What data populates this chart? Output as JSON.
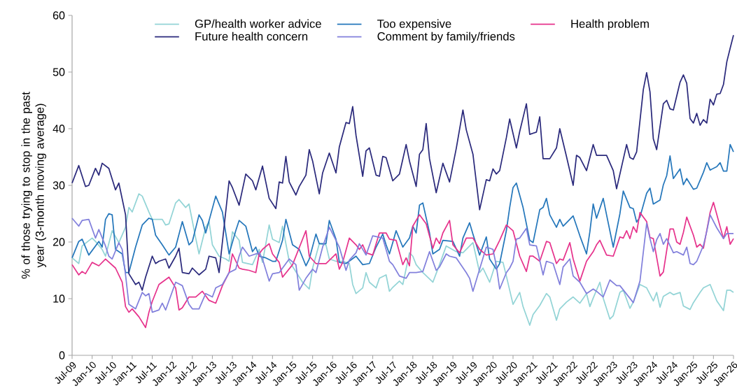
{
  "chart_data": {
    "type": "line",
    "ylabel": "% of those trying to stop in the past year (3-month moving average)",
    "xlim": [
      "2009-07",
      "2026-01"
    ],
    "xticks": [
      {
        "value": "2009-07",
        "label": "Jul-09"
      },
      {
        "value": "2010-01",
        "label": "Jan-10"
      },
      {
        "value": "2010-07",
        "label": "Jul-10"
      },
      {
        "value": "2011-01",
        "label": "Jan-11"
      },
      {
        "value": "2011-07",
        "label": "Jul-11"
      },
      {
        "value": "2012-01",
        "label": "Jan-12"
      },
      {
        "value": "2012-07",
        "label": "Jul-12"
      },
      {
        "value": "2013-01",
        "label": "Jan-13"
      },
      {
        "value": "2013-07",
        "label": "Jul-13"
      },
      {
        "value": "2014-01",
        "label": "Jan-14"
      },
      {
        "value": "2014-07",
        "label": "Jul-14"
      },
      {
        "value": "2015-01",
        "label": "Jan-15"
      },
      {
        "value": "2015-07",
        "label": "Jul-15"
      },
      {
        "value": "2016-01",
        "label": "Jan-16"
      },
      {
        "value": "2016-07",
        "label": "Jul-16"
      },
      {
        "value": "2017-01",
        "label": "Jan-17"
      },
      {
        "value": "2017-07",
        "label": "Jul-17"
      },
      {
        "value": "2018-01",
        "label": "Jan-18"
      },
      {
        "value": "2018-07",
        "label": "Jul-18"
      },
      {
        "value": "2019-01",
        "label": "Jan-19"
      },
      {
        "value": "2019-07",
        "label": "Jul-19"
      },
      {
        "value": "2020-01",
        "label": "Jan-20"
      },
      {
        "value": "2020-07",
        "label": "Jul-20"
      },
      {
        "value": "2021-01",
        "label": "Jan-21"
      },
      {
        "value": "2021-07",
        "label": "Jul-21"
      },
      {
        "value": "2022-01",
        "label": "Jan-22"
      },
      {
        "value": "2022-07",
        "label": "Jul-22"
      },
      {
        "value": "2023-01",
        "label": "Jan-23"
      },
      {
        "value": "2023-07",
        "label": "Jul-23"
      },
      {
        "value": "2024-01",
        "label": "Jan-24"
      },
      {
        "value": "2024-07",
        "label": "Jul-24"
      },
      {
        "value": "2025-01",
        "label": "Jan-25"
      },
      {
        "value": "2025-07",
        "label": "Jul-25"
      },
      {
        "value": "2026-01",
        "label": "Jan-26"
      }
    ],
    "ylim": [
      0,
      60
    ],
    "yticks": [
      0,
      10,
      20,
      30,
      40,
      50,
      60
    ],
    "legend": "top",
    "series": [
      {
        "name": "GP/health worker advice",
        "color": "#93d4d6",
        "x": [
          "2009-07",
          "2009-09",
          "2009-10",
          "2010-01",
          "2010-02",
          "2010-04",
          "2010-05",
          "2010-07",
          "2010-09",
          "2010-11",
          "2010-12",
          "2011-01",
          "2011-03",
          "2011-04",
          "2011-06",
          "2011-07",
          "2011-10",
          "2011-11",
          "2011-12",
          "2012-02",
          "2012-03",
          "2012-05",
          "2012-06",
          "2012-08",
          "2012-09",
          "2012-11",
          "2012-12",
          "2013-01",
          "2013-03",
          "2013-05",
          "2013-06",
          "2013-07",
          "2013-09",
          "2013-10",
          "2014-01",
          "2014-03",
          "2014-04",
          "2014-06",
          "2014-07",
          "2014-09",
          "2014-10",
          "2014-12",
          "2015-04",
          "2015-06",
          "2015-07",
          "2015-09",
          "2015-11",
          "2015-12",
          "2016-02",
          "2016-04",
          "2016-06",
          "2016-07",
          "2016-08",
          "2016-10",
          "2016-11",
          "2016-12",
          "2017-02",
          "2017-03",
          "2017-05",
          "2017-06",
          "2017-07",
          "2017-09",
          "2017-10",
          "2017-12",
          "2018-01",
          "2018-02",
          "2018-04",
          "2018-07",
          "2018-09",
          "2018-11",
          "2019-02",
          "2019-04",
          "2019-07",
          "2019-09",
          "2019-10",
          "2019-12",
          "2020-02",
          "2020-04",
          "2020-05",
          "2020-06",
          "2020-07",
          "2020-09",
          "2020-10",
          "2020-12",
          "2021-01",
          "2021-03",
          "2021-05",
          "2021-06",
          "2021-08",
          "2021-09",
          "2021-11",
          "2022-01",
          "2022-03",
          "2022-05",
          "2022-06",
          "2022-07",
          "2022-09",
          "2022-10",
          "2022-12",
          "2023-01",
          "2023-03",
          "2023-04",
          "2023-06",
          "2023-07",
          "2023-09",
          "2023-11",
          "2024-01",
          "2024-02",
          "2024-03",
          "2024-04",
          "2024-06",
          "2024-07",
          "2024-09",
          "2024-10",
          "2024-12",
          "2025-01",
          "2025-03",
          "2025-04",
          "2025-06",
          "2025-08",
          "2025-10",
          "2025-11",
          "2025-12",
          "2026-01"
        ],
        "values": [
          17.2,
          16.2,
          19.3,
          20.7,
          20.1,
          18.7,
          17.5,
          22.0,
          19.9,
          22.6,
          26.1,
          25.3,
          28.5,
          28.1,
          25.3,
          24.0,
          24.0,
          23.0,
          23.2,
          26.9,
          27.5,
          26.1,
          26.7,
          20.7,
          17.9,
          22.6,
          23.6,
          19.5,
          17.5,
          17.0,
          16.6,
          21.8,
          20.3,
          16.4,
          16.0,
          18.7,
          16.4,
          23.0,
          20.5,
          19.9,
          22.8,
          16.6,
          12.9,
          11.7,
          15.4,
          19.7,
          19.5,
          17.0,
          16.6,
          16.6,
          16.2,
          12.5,
          10.9,
          11.9,
          14.6,
          12.9,
          11.9,
          13.6,
          14.2,
          11.3,
          12.0,
          13.1,
          12.5,
          18.1,
          17.5,
          16.0,
          14.6,
          12.9,
          16.0,
          19.3,
          18.3,
          18.1,
          19.9,
          14.6,
          15.4,
          12.9,
          16.6,
          16.4,
          14.0,
          11.5,
          9.0,
          11.1,
          8.6,
          5.3,
          7.2,
          8.8,
          10.9,
          10.3,
          6.2,
          8.2,
          9.4,
          10.3,
          9.2,
          10.9,
          8.6,
          10.1,
          12.9,
          10.1,
          6.4,
          7.0,
          11.1,
          11.5,
          8.3,
          9.4,
          12.5,
          11.9,
          9.6,
          11.1,
          8.5,
          10.4,
          11.1,
          10.7,
          11.1,
          8.7,
          8.1,
          9.3,
          11.1,
          11.9,
          12.5,
          9.6,
          7.9,
          11.5,
          11.5,
          11.1
        ]
      },
      {
        "name": "Too expensive",
        "color": "#2577bb",
        "x": [
          "2009-07",
          "2009-09",
          "2009-10",
          "2009-12",
          "2010-03",
          "2010-04",
          "2010-05",
          "2010-06",
          "2010-07",
          "2010-08",
          "2010-10",
          "2010-11",
          "2010-12",
          "2011-02",
          "2011-04",
          "2011-06",
          "2011-07",
          "2011-08",
          "2011-10",
          "2011-12",
          "2012-02",
          "2012-04",
          "2012-06",
          "2012-07",
          "2012-09",
          "2012-10",
          "2012-11",
          "2013-02",
          "2013-04",
          "2013-06",
          "2013-08",
          "2013-09",
          "2013-11",
          "2014-01",
          "2014-02",
          "2014-03",
          "2014-05",
          "2014-07",
          "2014-08",
          "2014-10",
          "2014-11",
          "2015-01",
          "2015-03",
          "2015-05",
          "2015-06",
          "2015-08",
          "2015-09",
          "2015-11",
          "2015-12",
          "2016-02",
          "2016-03",
          "2016-05",
          "2016-08",
          "2016-10",
          "2016-12",
          "2017-02",
          "2017-04",
          "2017-05",
          "2017-06",
          "2017-07",
          "2017-08",
          "2017-10",
          "2017-12",
          "2018-01",
          "2018-02",
          "2018-03",
          "2018-04",
          "2018-06",
          "2018-07",
          "2018-09",
          "2018-10",
          "2019-01",
          "2019-03",
          "2019-04",
          "2019-06",
          "2019-07",
          "2019-09",
          "2019-11",
          "2019-12",
          "2020-02",
          "2020-03",
          "2020-05",
          "2020-06",
          "2020-07",
          "2020-08",
          "2020-10",
          "2020-12",
          "2021-01",
          "2021-03",
          "2021-04",
          "2021-05",
          "2021-06",
          "2021-08",
          "2021-09",
          "2021-10",
          "2021-12",
          "2022-01",
          "2022-03",
          "2022-05",
          "2022-06",
          "2022-07",
          "2022-08",
          "2022-10",
          "2022-11",
          "2023-01",
          "2023-03",
          "2023-04",
          "2023-06",
          "2023-07",
          "2023-08",
          "2023-09",
          "2023-11",
          "2023-12",
          "2024-01",
          "2024-03",
          "2024-04",
          "2024-05",
          "2024-06",
          "2024-07",
          "2024-09",
          "2024-10",
          "2024-11",
          "2025-01",
          "2025-02",
          "2025-04",
          "2025-05",
          "2025-06",
          "2025-08",
          "2025-09",
          "2025-10",
          "2025-11",
          "2025-12",
          "2026-01"
        ],
        "values": [
          17.2,
          20.1,
          20.5,
          17.7,
          20.1,
          19.1,
          24.0,
          25.0,
          24.8,
          18.7,
          17.9,
          14.6,
          14.6,
          19.1,
          23.0,
          24.2,
          24.0,
          21.2,
          19.5,
          17.7,
          19.1,
          23.6,
          19.5,
          20.1,
          24.8,
          23.8,
          21.6,
          28.1,
          25.3,
          17.9,
          22.0,
          23.8,
          22.8,
          18.3,
          19.1,
          17.5,
          17.2,
          16.6,
          16.6,
          20.3,
          24.0,
          19.5,
          18.7,
          15.8,
          17.0,
          21.4,
          19.7,
          19.7,
          23.8,
          20.5,
          16.4,
          16.2,
          17.5,
          16.0,
          16.2,
          19.1,
          21.4,
          19.5,
          17.9,
          19.9,
          22.0,
          19.1,
          20.7,
          22.8,
          21.6,
          26.5,
          26.9,
          21.6,
          17.9,
          18.7,
          20.3,
          20.1,
          17.5,
          20.7,
          23.4,
          21.4,
          17.7,
          20.9,
          17.0,
          15.2,
          16.2,
          22.0,
          26.1,
          29.6,
          30.4,
          26.1,
          20.3,
          19.9,
          25.7,
          26.1,
          27.7,
          24.8,
          22.6,
          24.0,
          22.8,
          24.0,
          24.6,
          21.1,
          17.9,
          21.8,
          26.7,
          24.2,
          27.7,
          24.8,
          19.1,
          25.0,
          29.0,
          26.1,
          25.9,
          23.5,
          24.4,
          28.6,
          29.5,
          26.7,
          27.4,
          30.1,
          31.7,
          35.2,
          31.2,
          32.9,
          30.1,
          31.2,
          29.3,
          29.5,
          32.3,
          34.0,
          32.7,
          33.3,
          34.0,
          32.5,
          32.5,
          37.2,
          35.9
        ]
      },
      {
        "name": "Health problem",
        "color": "#e6338c",
        "x": [
          "2009-07",
          "2009-09",
          "2009-10",
          "2009-11",
          "2010-01",
          "2010-03",
          "2010-05",
          "2010-08",
          "2010-10",
          "2010-11",
          "2010-12",
          "2011-01",
          "2011-03",
          "2011-05",
          "2011-06",
          "2011-07",
          "2011-09",
          "2011-12",
          "2012-02",
          "2012-03",
          "2012-04",
          "2012-06",
          "2012-08",
          "2012-10",
          "2012-12",
          "2013-02",
          "2013-04",
          "2013-06",
          "2013-07",
          "2013-09",
          "2013-10",
          "2013-12",
          "2014-02",
          "2014-03",
          "2014-04",
          "2014-06",
          "2014-07",
          "2014-09",
          "2014-10",
          "2015-01",
          "2015-05",
          "2015-06",
          "2015-08",
          "2015-11",
          "2016-02",
          "2016-03",
          "2016-04",
          "2016-06",
          "2016-08",
          "2016-09",
          "2016-10",
          "2016-11",
          "2017-01",
          "2017-03",
          "2017-05",
          "2017-06",
          "2017-08",
          "2017-10",
          "2017-11",
          "2017-12",
          "2018-01",
          "2018-03",
          "2018-05",
          "2018-07",
          "2018-08",
          "2018-09",
          "2018-10",
          "2018-12",
          "2019-01",
          "2019-03",
          "2019-05",
          "2019-07",
          "2019-09",
          "2019-11",
          "2020-01",
          "2020-03",
          "2020-05",
          "2020-07",
          "2020-09",
          "2020-11",
          "2020-12",
          "2021-01",
          "2021-03",
          "2021-05",
          "2021-06",
          "2021-08",
          "2021-09",
          "2021-10",
          "2021-12",
          "2022-01",
          "2022-03",
          "2022-05",
          "2022-07",
          "2022-08",
          "2022-09",
          "2022-11",
          "2023-01",
          "2023-03",
          "2023-04",
          "2023-05",
          "2023-06",
          "2023-07",
          "2023-08",
          "2023-09",
          "2023-11",
          "2023-12",
          "2024-01",
          "2024-03",
          "2024-04",
          "2024-06",
          "2024-07",
          "2024-08",
          "2024-09",
          "2024-10",
          "2024-11",
          "2025-01",
          "2025-02",
          "2025-03",
          "2025-04",
          "2025-06",
          "2025-07",
          "2025-09",
          "2025-10",
          "2025-11",
          "2025-12",
          "2026-01"
        ],
        "values": [
          16.0,
          14.2,
          14.8,
          14.4,
          16.4,
          15.8,
          17.0,
          15.4,
          12.9,
          8.6,
          7.6,
          8.2,
          6.8,
          4.9,
          7.6,
          9.5,
          12.5,
          13.8,
          11.9,
          8.0,
          8.4,
          10.3,
          10.3,
          11.3,
          9.7,
          9.2,
          12.3,
          14.6,
          17.9,
          15.4,
          15.2,
          15.0,
          14.6,
          17.9,
          18.7,
          19.7,
          17.9,
          16.4,
          13.8,
          16.0,
          22.0,
          17.5,
          16.2,
          16.2,
          17.9,
          15.2,
          16.4,
          20.7,
          19.5,
          18.7,
          19.5,
          18.1,
          17.7,
          21.6,
          21.6,
          20.5,
          20.3,
          16.0,
          17.2,
          15.8,
          22.8,
          24.8,
          23.2,
          18.9,
          20.7,
          19.7,
          21.6,
          23.8,
          19.5,
          18.1,
          20.7,
          20.7,
          18.7,
          17.7,
          17.9,
          20.3,
          23.0,
          22.0,
          17.5,
          14.8,
          17.5,
          17.5,
          16.6,
          20.1,
          19.9,
          16.2,
          17.0,
          16.8,
          19.9,
          17.0,
          13.1,
          16.6,
          18.3,
          19.5,
          20.3,
          17.7,
          17.5,
          20.9,
          20.7,
          22.0,
          20.6,
          22.7,
          21.7,
          25.2,
          23.6,
          20.8,
          20.6,
          14.0,
          14.7,
          22.3,
          22.3,
          20.0,
          19.6,
          21.7,
          24.4,
          21.2,
          19.1,
          19.6,
          18.9,
          25.2,
          27.0,
          22.7,
          20.6,
          22.7,
          19.6,
          20.6
        ]
      },
      {
        "name": "Future health concern",
        "color": "#2b2a7c",
        "x": [
          "2009-07",
          "2009-09",
          "2009-11",
          "2009-12",
          "2010-02",
          "2010-03",
          "2010-04",
          "2010-06",
          "2010-08",
          "2010-09",
          "2010-11",
          "2010-12",
          "2011-02",
          "2011-03",
          "2011-04",
          "2011-05",
          "2011-07",
          "2011-08",
          "2011-09",
          "2011-11",
          "2011-12",
          "2012-02",
          "2012-03",
          "2012-04",
          "2012-06",
          "2012-07",
          "2012-09",
          "2012-11",
          "2012-12",
          "2013-02",
          "2013-03",
          "2013-06",
          "2013-07",
          "2013-09",
          "2013-11",
          "2014-01",
          "2014-02",
          "2014-04",
          "2014-06",
          "2014-08",
          "2014-09",
          "2014-10",
          "2014-11",
          "2014-12",
          "2015-02",
          "2015-03",
          "2015-05",
          "2015-06",
          "2015-07",
          "2015-09",
          "2015-10",
          "2015-12",
          "2016-02",
          "2016-03",
          "2016-05",
          "2016-06",
          "2016-07",
          "2016-08",
          "2016-10",
          "2016-11",
          "2016-12",
          "2017-02",
          "2017-03",
          "2017-04",
          "2017-05",
          "2017-07",
          "2017-09",
          "2017-11",
          "2017-12",
          "2018-02",
          "2018-03",
          "2018-04",
          "2018-05",
          "2018-06",
          "2018-08",
          "2018-10",
          "2018-12",
          "2019-02",
          "2019-04",
          "2019-05",
          "2019-07",
          "2019-09",
          "2019-11",
          "2019-12",
          "2020-01",
          "2020-02",
          "2020-03",
          "2020-05",
          "2020-06",
          "2020-08",
          "2020-09",
          "2020-11",
          "2020-12",
          "2021-02",
          "2021-03",
          "2021-04",
          "2021-06",
          "2021-08",
          "2021-09",
          "2021-11",
          "2022-01",
          "2022-02",
          "2022-03",
          "2022-05",
          "2022-07",
          "2022-08",
          "2022-11",
          "2023-01",
          "2023-02",
          "2023-05",
          "2023-06",
          "2023-07",
          "2023-08",
          "2023-10",
          "2023-11",
          "2023-12",
          "2024-01",
          "2024-02",
          "2024-04",
          "2024-05",
          "2024-06",
          "2024-07",
          "2024-09",
          "2024-10",
          "2024-11",
          "2024-12",
          "2025-01",
          "2025-02",
          "2025-03",
          "2025-04",
          "2025-05",
          "2025-06",
          "2025-07",
          "2025-08",
          "2025-09",
          "2025-10",
          "2025-11",
          "2025-12",
          "2026-01"
        ],
        "values": [
          30.4,
          33.5,
          29.8,
          30.0,
          33.0,
          31.8,
          33.9,
          33.0,
          29.2,
          30.4,
          24.8,
          14.4,
          12.5,
          12.9,
          11.5,
          13.8,
          17.5,
          16.2,
          16.6,
          17.0,
          15.4,
          17.5,
          18.9,
          14.6,
          14.4,
          15.4,
          14.2,
          15.2,
          17.5,
          17.2,
          14.6,
          30.8,
          29.6,
          26.5,
          32.0,
          30.8,
          29.2,
          33.4,
          27.7,
          25.9,
          30.6,
          30.4,
          35.1,
          30.6,
          28.3,
          29.8,
          31.8,
          36.3,
          34.3,
          28.5,
          32.2,
          35.7,
          32.2,
          36.8,
          41.1,
          40.9,
          43.9,
          38.8,
          31.6,
          36.1,
          36.6,
          31.8,
          31.6,
          35.1,
          34.9,
          30.8,
          32.0,
          37.2,
          34.3,
          29.8,
          35.5,
          36.3,
          40.9,
          34.7,
          28.7,
          33.9,
          30.6,
          36.5,
          43.3,
          39.8,
          35.5,
          25.7,
          31.0,
          30.8,
          32.9,
          32.0,
          32.6,
          38.4,
          41.7,
          36.6,
          39.5,
          44.4,
          39.0,
          39.4,
          42.1,
          34.7,
          34.7,
          36.6,
          40.0,
          35.1,
          30.0,
          35.3,
          34.9,
          32.6,
          37.2,
          35.3,
          35.3,
          32.6,
          29.4,
          37.2,
          34.9,
          34.6,
          35.9,
          46.9,
          49.9,
          46.5,
          38.2,
          36.3,
          44.4,
          45.0,
          43.5,
          43.3,
          48.2,
          49.5,
          48.0,
          41.8,
          41.0,
          42.7,
          40.6,
          41.6,
          41.0,
          45.2,
          44.2,
          46.1,
          46.2,
          47.8,
          51.8,
          54.2,
          56.5
        ]
      },
      {
        "name": "Comment by family/friends",
        "color": "#8280dc",
        "x": [
          "2009-07",
          "2009-09",
          "2009-10",
          "2009-12",
          "2010-02",
          "2010-03",
          "2010-05",
          "2010-06",
          "2010-07",
          "2010-09",
          "2010-10",
          "2010-11",
          "2010-12",
          "2011-02",
          "2011-04",
          "2011-05",
          "2011-06",
          "2011-07",
          "2011-09",
          "2011-10",
          "2011-11",
          "2012-02",
          "2012-04",
          "2012-06",
          "2012-07",
          "2012-09",
          "2012-11",
          "2013-01",
          "2013-02",
          "2013-04",
          "2013-06",
          "2013-08",
          "2013-09",
          "2013-10",
          "2013-12",
          "2014-03",
          "2014-04",
          "2014-06",
          "2014-07",
          "2014-09",
          "2014-12",
          "2015-02",
          "2015-03",
          "2015-05",
          "2015-07",
          "2015-08",
          "2015-10",
          "2015-12",
          "2016-02",
          "2016-03",
          "2016-05",
          "2016-06",
          "2016-08",
          "2016-09",
          "2016-11",
          "2017-01",
          "2017-04",
          "2017-06",
          "2017-07",
          "2017-08",
          "2017-09",
          "2017-11",
          "2017-12",
          "2018-02",
          "2018-04",
          "2018-06",
          "2018-08",
          "2018-09",
          "2018-11",
          "2018-12",
          "2019-02",
          "2019-05",
          "2019-06",
          "2019-07",
          "2019-09",
          "2019-11",
          "2020-01",
          "2020-02",
          "2020-03",
          "2020-05",
          "2020-06",
          "2020-07",
          "2020-08",
          "2020-09",
          "2020-11",
          "2020-12",
          "2021-02",
          "2021-04",
          "2021-05",
          "2021-07",
          "2021-09",
          "2021-10",
          "2021-12",
          "2022-01",
          "2022-03",
          "2022-05",
          "2022-07",
          "2022-08",
          "2022-10",
          "2022-12",
          "2023-02",
          "2023-03",
          "2023-05",
          "2023-07",
          "2023-09",
          "2023-11",
          "2023-12",
          "2024-01",
          "2024-02",
          "2024-03",
          "2024-04",
          "2024-05",
          "2024-07",
          "2024-08",
          "2024-10",
          "2024-11",
          "2024-12",
          "2025-01",
          "2025-02",
          "2025-04",
          "2025-05",
          "2025-06",
          "2025-08",
          "2025-10",
          "2025-11",
          "2026-01"
        ],
        "values": [
          24.2,
          22.8,
          23.8,
          24.0,
          20.7,
          22.2,
          19.3,
          17.5,
          17.0,
          19.9,
          18.7,
          14.2,
          9.0,
          8.2,
          11.1,
          10.5,
          10.9,
          7.6,
          8.0,
          9.2,
          8.0,
          12.9,
          12.3,
          9.0,
          8.2,
          8.2,
          10.9,
          10.3,
          11.9,
          12.5,
          14.6,
          15.2,
          17.5,
          19.1,
          17.5,
          18.1,
          17.0,
          13.1,
          14.4,
          14.6,
          17.0,
          16.0,
          11.5,
          13.6,
          15.2,
          14.6,
          19.1,
          22.6,
          20.3,
          19.1,
          15.0,
          16.8,
          18.1,
          19.7,
          17.7,
          21.1,
          20.7,
          16.6,
          16.0,
          15.0,
          14.0,
          13.6,
          14.6,
          14.6,
          14.8,
          18.3,
          15.0,
          15.6,
          17.9,
          17.5,
          17.2,
          14.6,
          13.6,
          11.3,
          15.2,
          19.1,
          18.7,
          15.8,
          11.7,
          14.6,
          15.4,
          16.6,
          20.5,
          20.7,
          22.4,
          19.5,
          19.3,
          14.2,
          16.6,
          16.2,
          12.5,
          15.6,
          17.0,
          14.0,
          12.9,
          10.9,
          11.7,
          11.3,
          10.3,
          13.3,
          12.3,
          12.3,
          10.8,
          9.3,
          13.1,
          23.3,
          20.6,
          18.3,
          20.4,
          21.5,
          19.6,
          20.6,
          18.1,
          18.3,
          17.7,
          19.1,
          16.2,
          16.0,
          16.6,
          19.4,
          21.9,
          24.8,
          22.5,
          20.6,
          21.5,
          21.5
        ]
      }
    ]
  }
}
